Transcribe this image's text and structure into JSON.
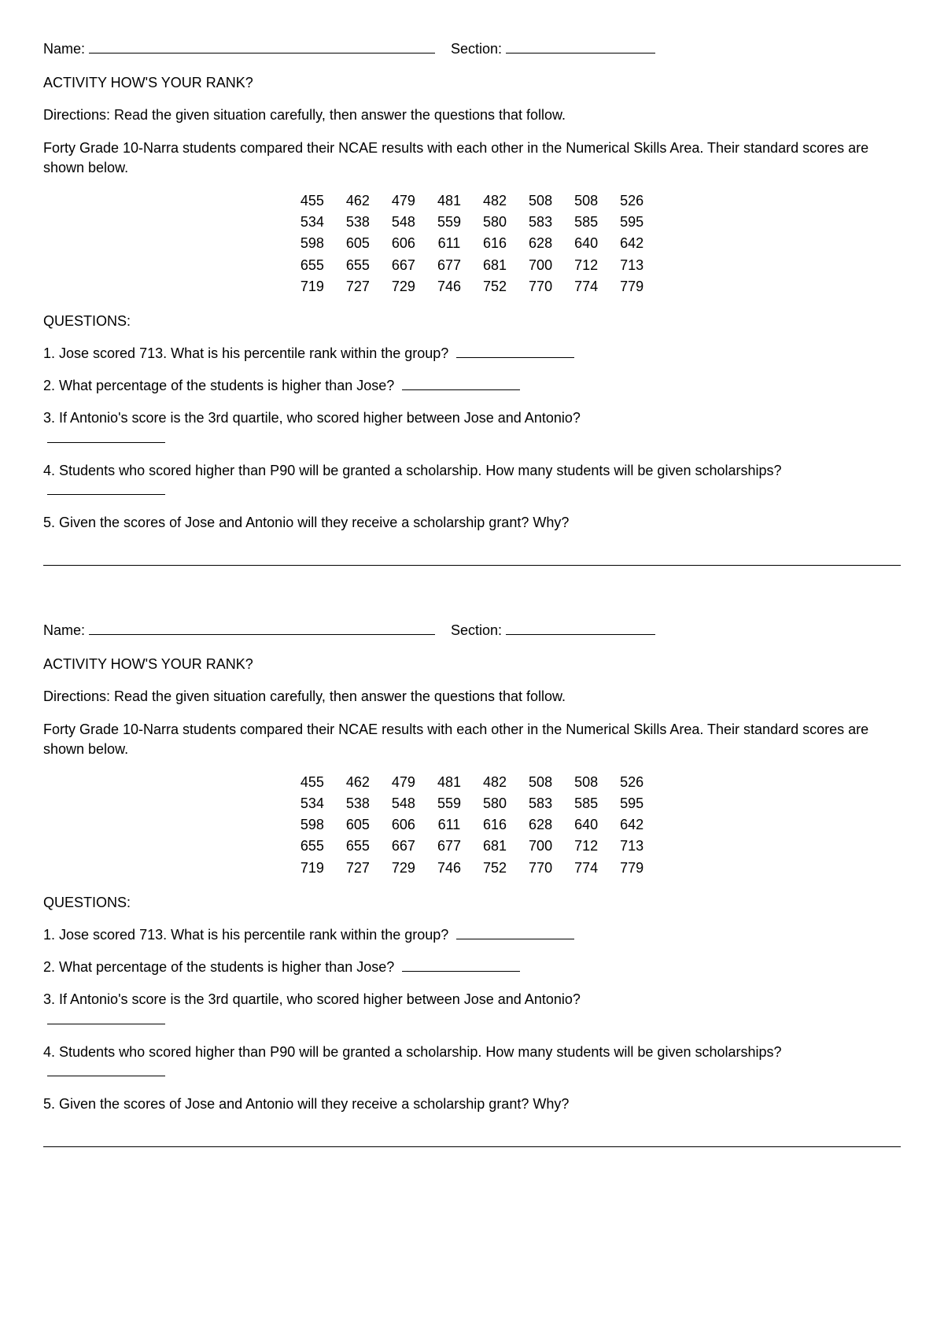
{
  "labels": {
    "name": "Name:",
    "section": "Section:"
  },
  "title": "ACTIVITY HOW'S YOUR RANK?",
  "directions": "Directions: Read the given situation carefully, then answer the questions that follow.",
  "intro": "Forty Grade 10-Narra students compared their NCAE results with each other in the Numerical Skills Area. Their standard scores are shown below.",
  "scores": {
    "rows": [
      [
        "455",
        "462",
        "479",
        "481",
        "482",
        "508",
        "508",
        "526"
      ],
      [
        "534",
        "538",
        "548",
        "559",
        "580",
        "583",
        "585",
        "595"
      ],
      [
        "598",
        "605",
        "606",
        "611",
        "616",
        "628",
        "640",
        "642"
      ],
      [
        "655",
        "655",
        "667",
        "677",
        "681",
        "700",
        "712",
        "713"
      ],
      [
        "719",
        "727",
        "729",
        "746",
        "752",
        "770",
        "774",
        "779"
      ]
    ]
  },
  "questions_heading": "QUESTIONS:",
  "questions": {
    "q1": "1. Jose scored 713. What is his percentile rank within the group?",
    "q2": "2. What percentage of the students is higher than Jose?",
    "q3": "3. If Antonio's score is the 3rd quartile, who scored higher between Jose and Antonio?",
    "q4a": "4. Students who scored higher than P90 will be granted a scholarship. How many students will be given scholarships?",
    "q5": "5. Given the scores of Jose and Antonio will they receive a scholarship grant? Why?"
  }
}
